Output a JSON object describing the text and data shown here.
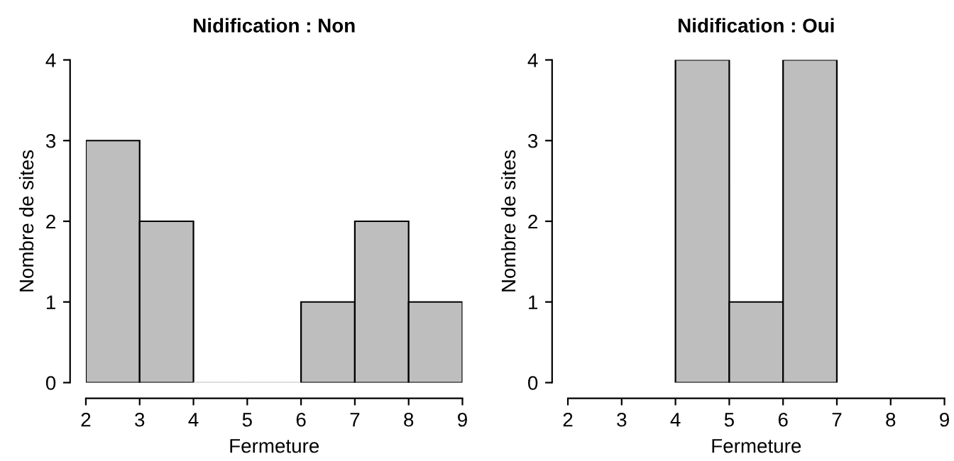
{
  "chart_data": [
    {
      "type": "histogram",
      "title": "Nidification : Non",
      "xlabel": "Fermeture",
      "ylabel": "Nombre de sites",
      "bins": [
        2,
        3,
        4,
        5,
        6,
        7,
        8,
        9
      ],
      "values": [
        3,
        2,
        0,
        0,
        1,
        2,
        1
      ],
      "color": "#bebebe",
      "xlim": [
        2,
        9
      ],
      "ylim": [
        0,
        4
      ],
      "xticks": [
        2,
        3,
        4,
        5,
        6,
        7,
        8,
        9
      ],
      "yticks": [
        0,
        1,
        2,
        3,
        4
      ],
      "grid": false,
      "legend": false
    },
    {
      "type": "histogram",
      "title": "Nidification : Oui",
      "xlabel": "Fermeture",
      "ylabel": "Nombre de sites",
      "bins": [
        4,
        5,
        6,
        7
      ],
      "values": [
        4,
        1,
        4
      ],
      "color": "#bebebe",
      "xlim": [
        2,
        9
      ],
      "ylim": [
        0,
        4
      ],
      "xticks": [
        2,
        3,
        4,
        5,
        6,
        7,
        8,
        9
      ],
      "yticks": [
        0,
        1,
        2,
        3,
        4
      ],
      "grid": false,
      "legend": false
    }
  ]
}
